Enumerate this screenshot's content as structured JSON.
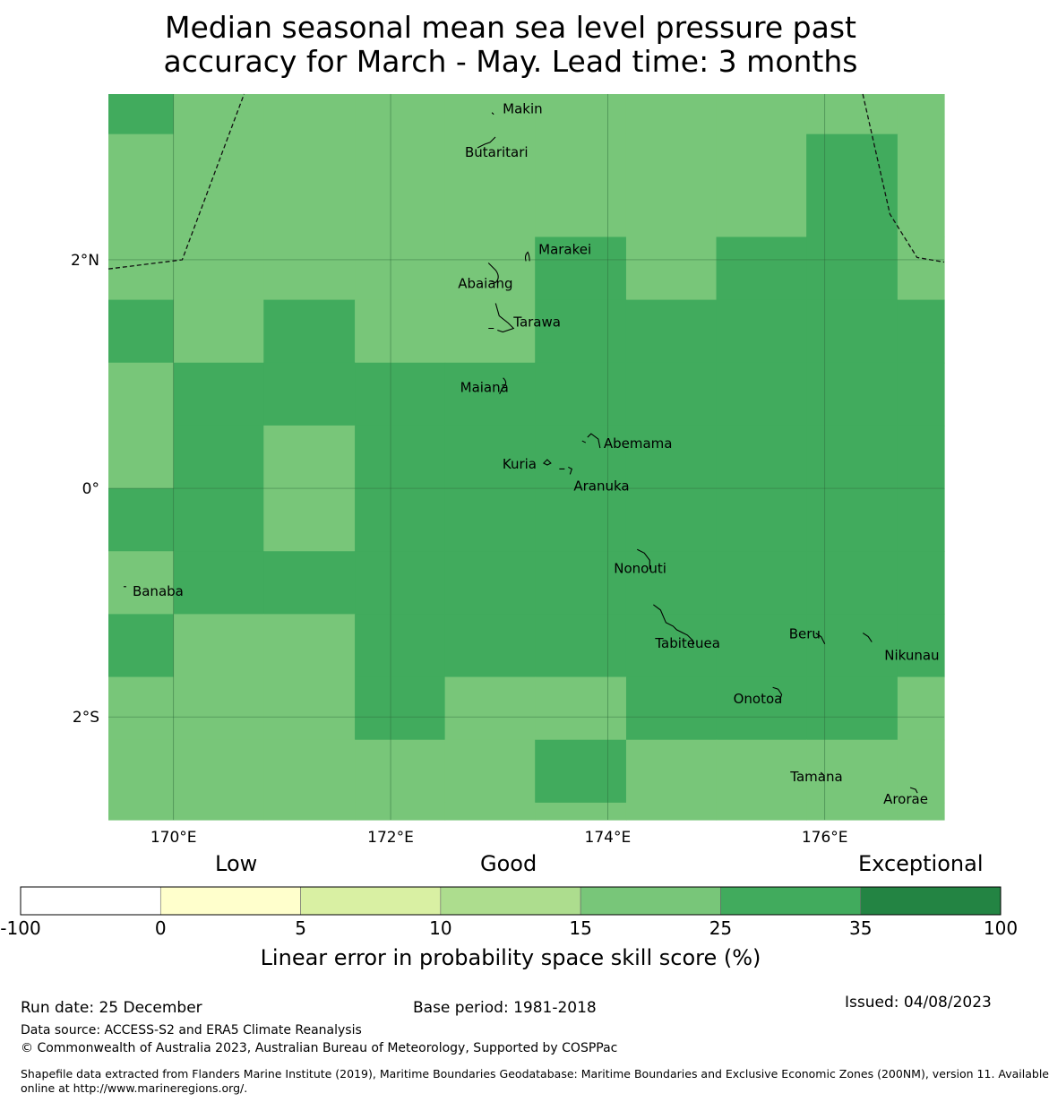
{
  "title": {
    "line1": "Median seasonal mean sea level pressure past",
    "line2": "accuracy for March - May. Lead time: 3 months"
  },
  "map": {
    "lon_range": [
      169.4,
      177.1
    ],
    "lat_range": [
      -2.9,
      3.45
    ],
    "lon_ticks": [
      170,
      172,
      174,
      176
    ],
    "lon_tick_labels": [
      "170°E",
      "172°E",
      "174°E",
      "176°E"
    ],
    "lat_ticks": [
      2,
      0,
      -2
    ],
    "lat_tick_labels": [
      "2°N",
      "0°",
      "2°S"
    ],
    "grid_lon_edges": [
      169.4,
      170.0,
      170.83,
      171.67,
      172.5,
      173.33,
      174.17,
      175.0,
      175.83,
      176.67,
      177.1
    ],
    "grid_lat_edges": [
      3.45,
      3.1,
      2.2,
      1.65,
      1.1,
      0.55,
      0.0,
      -0.55,
      -1.1,
      -1.65,
      -2.2,
      -2.75,
      -2.9
    ],
    "grid_cells": [
      [
        "c35",
        "c25",
        "c25",
        "c25",
        "c25",
        "c25",
        "c25",
        "c25",
        "c25",
        "c25"
      ],
      [
        "c25",
        "c25",
        "c25",
        "c25",
        "c25",
        "c25",
        "c25",
        "c25",
        "c35",
        "c25"
      ],
      [
        "c25",
        "c25",
        "c25",
        "c25",
        "c25",
        "c35",
        "c25",
        "c35",
        "c35",
        "c25"
      ],
      [
        "c35",
        "c25",
        "c35",
        "c25",
        "c25",
        "c35",
        "c35",
        "c35",
        "c35",
        "c35"
      ],
      [
        "c25",
        "c35",
        "c35",
        "c35",
        "c35",
        "c35",
        "c35",
        "c35",
        "c35",
        "c35"
      ],
      [
        "c25",
        "c35",
        "c25",
        "c35",
        "c35",
        "c35",
        "c35",
        "c35",
        "c35",
        "c35"
      ],
      [
        "c35",
        "c35",
        "c25",
        "c35",
        "c35",
        "c35",
        "c35",
        "c35",
        "c35",
        "c35"
      ],
      [
        "c25",
        "c35",
        "c35",
        "c35",
        "c35",
        "c35",
        "c35",
        "c35",
        "c35",
        "c35"
      ],
      [
        "c35",
        "c25",
        "c25",
        "c35",
        "c35",
        "c35",
        "c35",
        "c35",
        "c35",
        "c35"
      ],
      [
        "c25",
        "c25",
        "c25",
        "c35",
        "c25",
        "c25",
        "c35",
        "c35",
        "c35",
        "c25"
      ],
      [
        "c25",
        "c25",
        "c25",
        "c25",
        "c25",
        "c35",
        "c25",
        "c25",
        "c25",
        "c25"
      ],
      [
        "c25",
        "c25",
        "c25",
        "c25",
        "c25",
        "c25",
        "c25",
        "c25",
        "c25",
        "c25"
      ]
    ],
    "eez_boundaries": [
      [
        [
          169.4,
          1.92
        ],
        [
          170.08,
          2.0
        ],
        [
          170.65,
          3.45
        ]
      ],
      [
        [
          176.35,
          3.45
        ],
        [
          176.6,
          2.4
        ],
        [
          176.85,
          2.02
        ],
        [
          177.1,
          1.98
        ]
      ]
    ],
    "islands": [
      {
        "name": "Makin",
        "lon": 172.95,
        "lat": 3.28
      },
      {
        "name": "Butaritari",
        "lon": 172.8,
        "lat": 2.98
      },
      {
        "name": "Marakei",
        "lon": 173.28,
        "lat": 2.02
      },
      {
        "name": "Abaiang",
        "lon": 173.0,
        "lat": 1.8
      },
      {
        "name": "Tarawa",
        "lon": 173.05,
        "lat": 1.4
      },
      {
        "name": "Maiana",
        "lon": 173.02,
        "lat": 0.92
      },
      {
        "name": "Abemama",
        "lon": 173.88,
        "lat": 0.4
      },
      {
        "name": "Kuria",
        "lon": 173.41,
        "lat": 0.22
      },
      {
        "name": "Aranuka",
        "lon": 173.62,
        "lat": 0.17
      },
      {
        "name": "Nonouti",
        "lon": 174.42,
        "lat": -0.66
      },
      {
        "name": "Banaba",
        "lon": 169.54,
        "lat": -0.86
      },
      {
        "name": "Tabiteuea",
        "lon": 174.85,
        "lat": -1.3
      },
      {
        "name": "Beru",
        "lon": 176.0,
        "lat": -1.33
      },
      {
        "name": "Nikunau",
        "lon": 176.45,
        "lat": -1.36
      },
      {
        "name": "Onotoa",
        "lon": 175.57,
        "lat": -1.82
      },
      {
        "name": "Tamana",
        "lon": 175.98,
        "lat": -2.5
      },
      {
        "name": "Arorae",
        "lon": 176.82,
        "lat": -2.65
      }
    ]
  },
  "colorbar": {
    "categories": [
      "Low",
      "Good",
      "Exceptional"
    ],
    "colors": [
      "#ffffff",
      "#ffffcc",
      "#d9f0a3",
      "#addd8e",
      "#78c679",
      "#41ab5d",
      "#238443"
    ],
    "tick_labels": [
      "-100",
      "0",
      "5",
      "10",
      "15",
      "25",
      "35",
      "100"
    ],
    "label": "Linear error in probability space skill score (%)"
  },
  "legend_colors": {
    "c25": "#78c679",
    "c35": "#41ab5d"
  },
  "footer": {
    "run_date": "Run date: 25 December",
    "base_period": "Base period: 1981-2018",
    "issued": "Issued: 04/08/2023",
    "data_source": "Data source: ACCESS-S2 and ERA5 Climate Reanalysis",
    "copyright": "© Commonwealth of Australia 2023, Australian Bureau of Meteorology, Supported by COSPPac",
    "shapefile_line1": "Shapefile data extracted from Flanders Marine Institute (2019), Maritime Boundaries Geodatabase: Maritime Boundaries and Exclusive Economic Zones (200NM), version 11. Available",
    "shapefile_line2": "online at http://www.marineregions.org/."
  }
}
